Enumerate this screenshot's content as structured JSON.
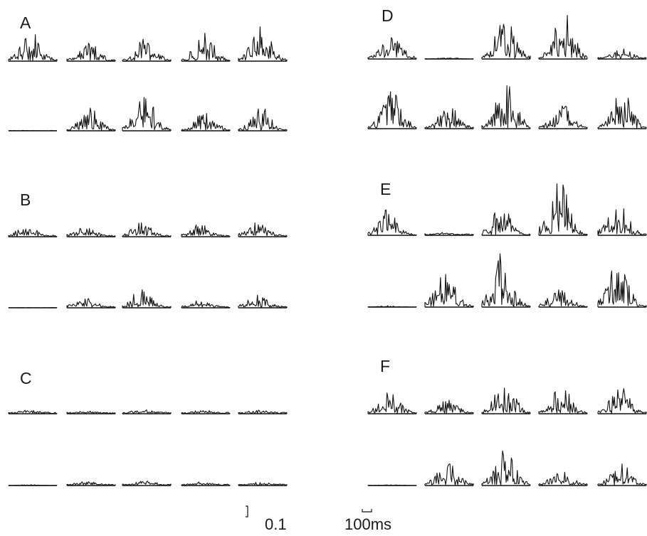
{
  "chart_data": {
    "type": "line",
    "description_labels": {
      "panels": [
        "A",
        "B",
        "C",
        "D",
        "E",
        "F"
      ],
      "scale_y_label": "0.1",
      "scale_x_label": "100ms"
    },
    "panels": [
      {
        "label": "A",
        "rows": [
          [
            0.55,
            0.3,
            0.45,
            0.5,
            0.6
          ],
          [
            0.0,
            0.4,
            0.75,
            0.35,
            0.4
          ]
        ]
      },
      {
        "label": "B",
        "rows": [
          [
            0.18,
            0.15,
            0.25,
            0.22,
            0.25
          ],
          [
            0.0,
            0.18,
            0.32,
            0.13,
            0.22
          ]
        ]
      },
      {
        "label": "C",
        "rows": [
          [
            0.06,
            0.03,
            0.06,
            0.05,
            0.05
          ],
          [
            0.01,
            0.06,
            0.07,
            0.05,
            0.04
          ]
        ]
      },
      {
        "label": "D",
        "rows": [
          [
            0.45,
            0.02,
            0.75,
            0.85,
            0.18
          ],
          [
            0.65,
            0.4,
            0.85,
            0.45,
            0.65
          ]
        ]
      },
      {
        "label": "E",
        "rows": [
          [
            0.45,
            0.03,
            0.5,
            1.0,
            0.6
          ],
          [
            0.02,
            0.6,
            0.95,
            0.35,
            0.8
          ]
        ]
      },
      {
        "label": "F",
        "rows": [
          [
            0.4,
            0.25,
            0.55,
            0.45,
            0.45
          ],
          [
            0.01,
            0.4,
            0.65,
            0.25,
            0.4
          ]
        ]
      }
    ]
  }
}
